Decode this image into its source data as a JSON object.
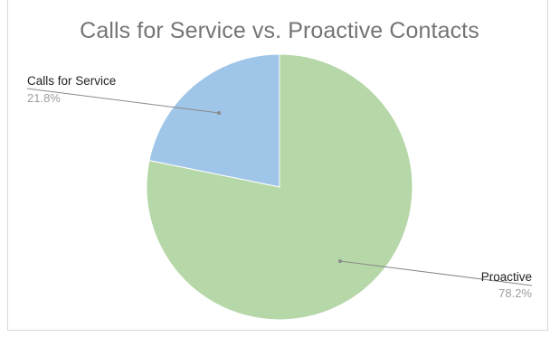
{
  "chart_data": {
    "type": "pie",
    "title": "Calls for Service vs. Proactive Contacts",
    "slices": [
      {
        "label": "Calls for Service",
        "percent_label": "21.8%",
        "value": 21.8,
        "color": "#9fc5e8"
      },
      {
        "label": "Proactive",
        "percent_label": "78.2%",
        "value": 78.2,
        "color": "#b6d7a8"
      }
    ],
    "legend": "none",
    "label_style": "leader-lines"
  }
}
